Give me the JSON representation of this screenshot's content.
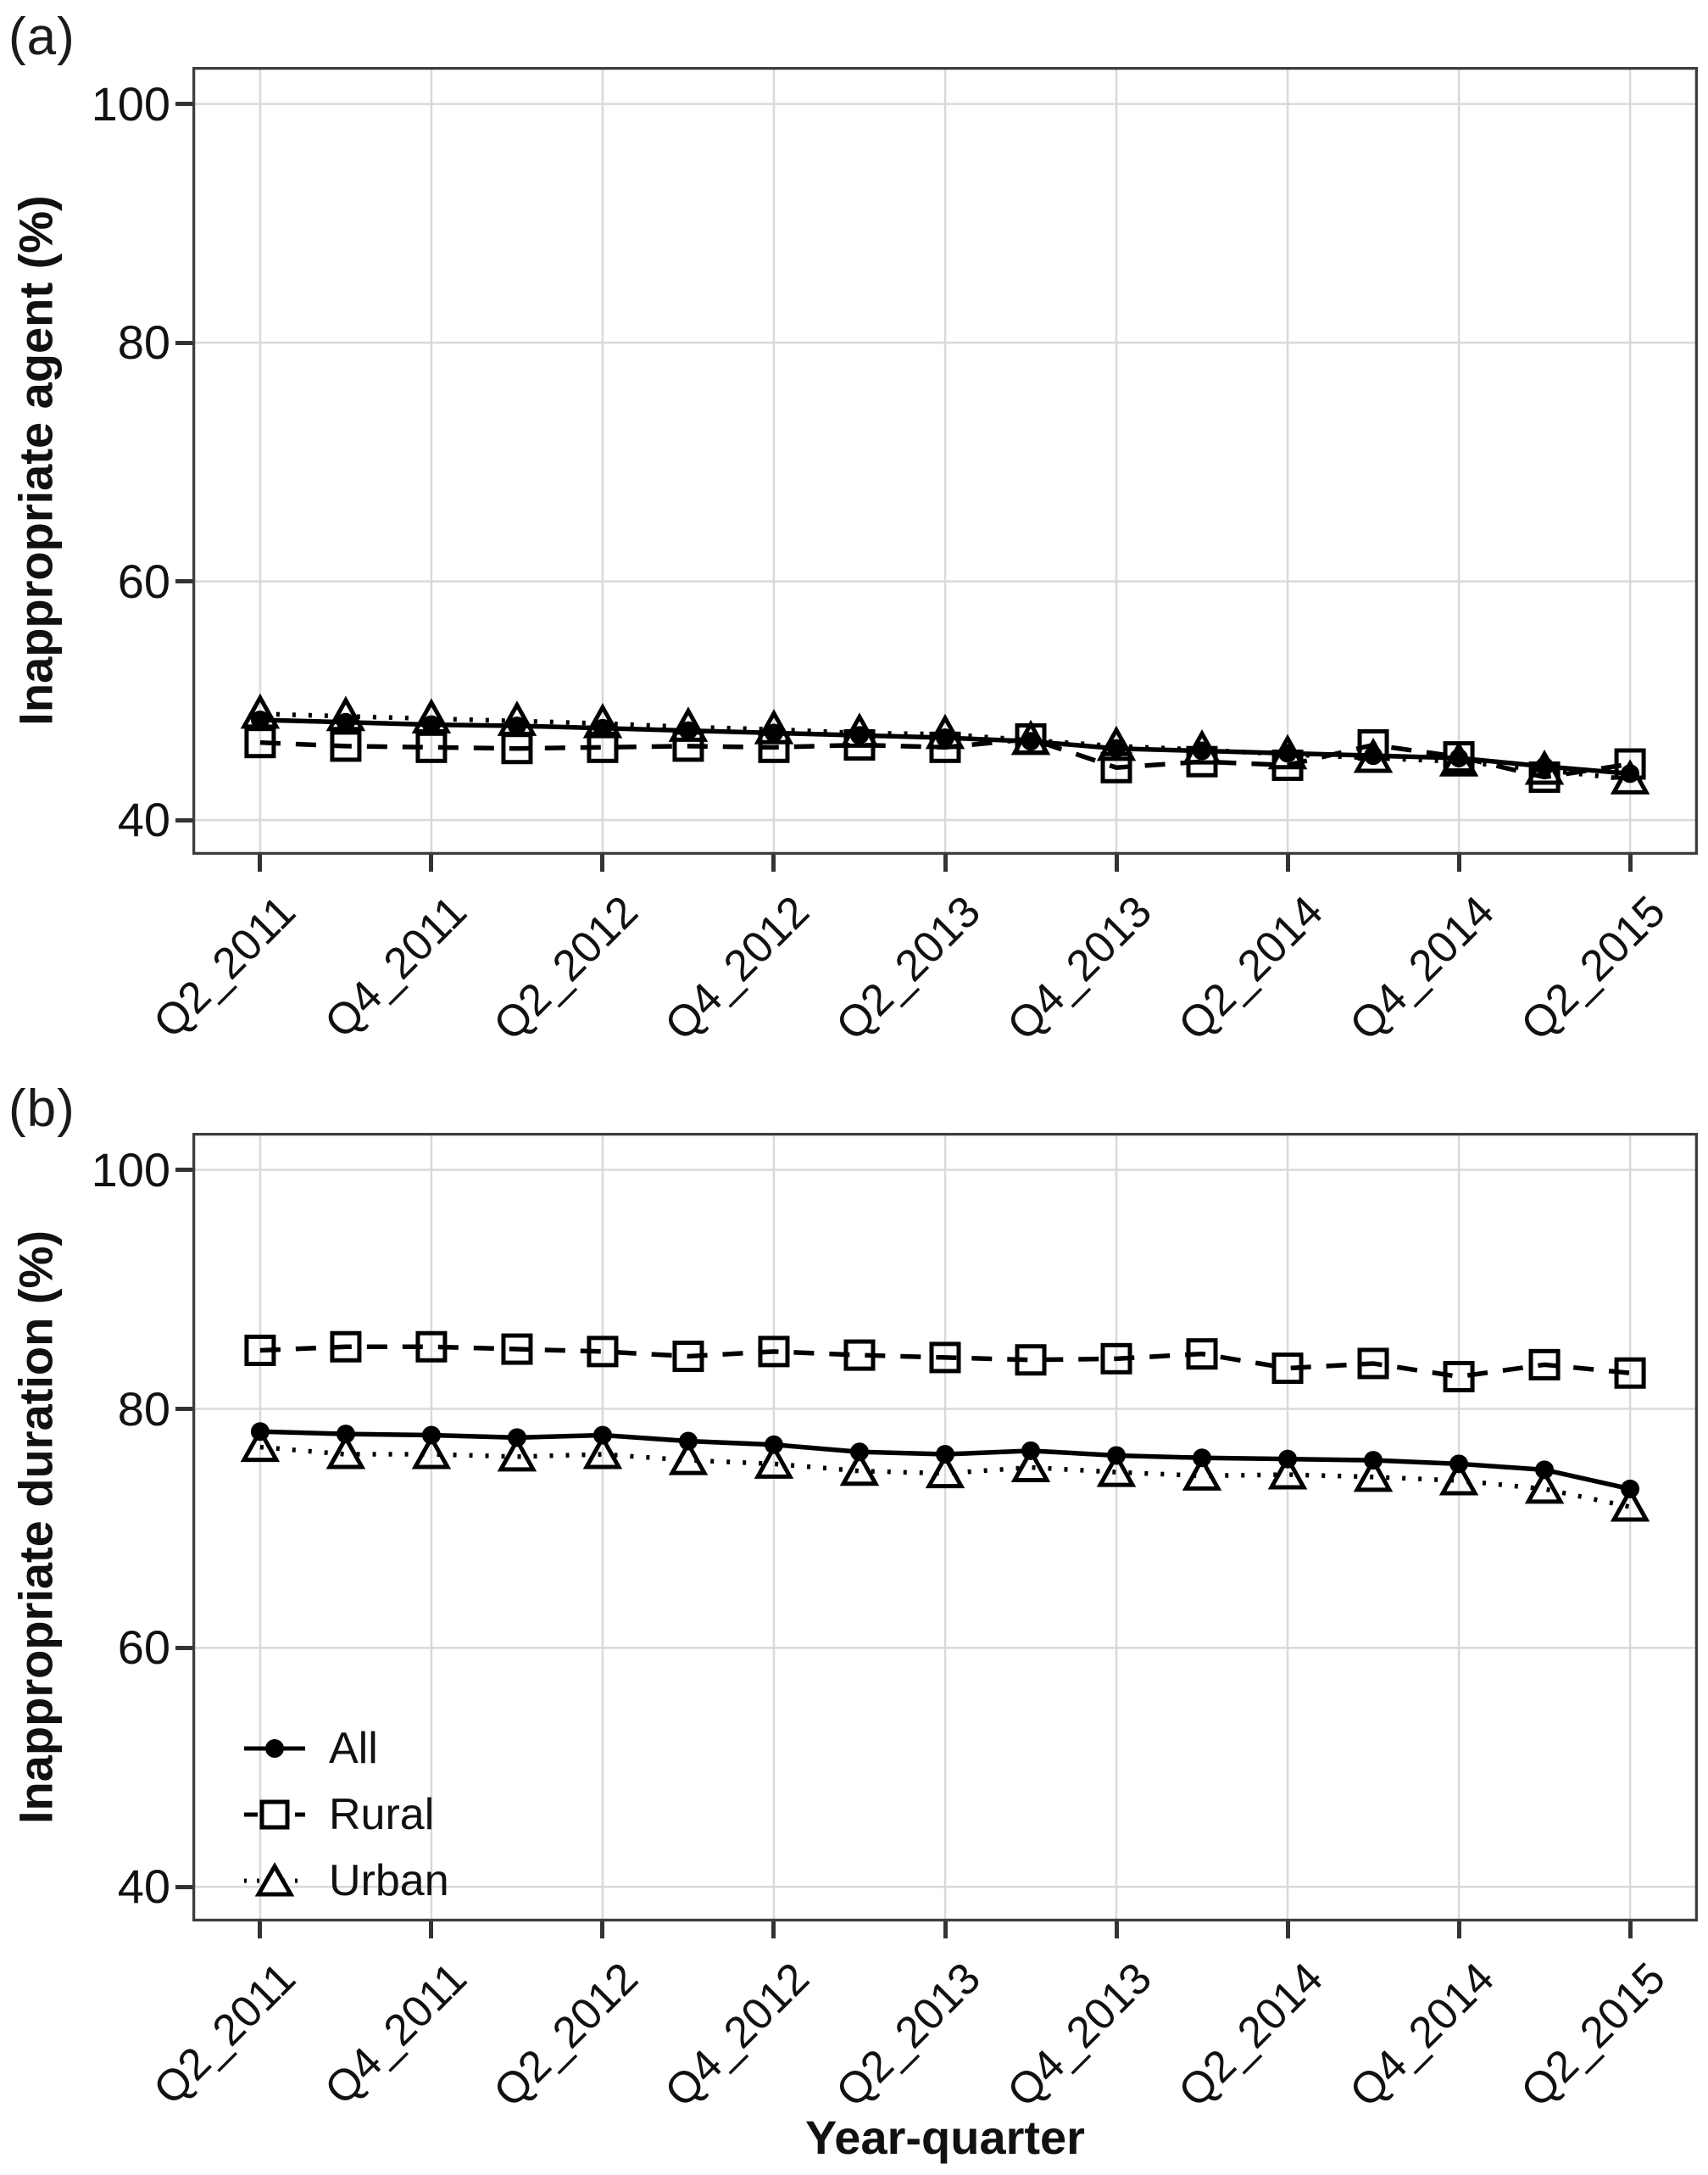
{
  "figure": {
    "kind": "two-panel scientific line chart",
    "background": "#ffffff"
  },
  "ui": {
    "panel_a_letter": "(a)",
    "panel_b_letter": "(b)"
  },
  "x_axis": {
    "title": "Year-quarter",
    "labeled_ticks": [
      "Q2_2011",
      "Q4_2011",
      "Q2_2012",
      "Q4_2012",
      "Q2_2013",
      "Q4_2013",
      "Q2_2014",
      "Q4_2014",
      "Q2_2015"
    ]
  },
  "y_axis": {
    "ticks": [
      100,
      80,
      60,
      40
    ]
  },
  "legend": {
    "position": "inside panel (b), bottom-left",
    "items": [
      {
        "label": "All",
        "marker": "filled-circle",
        "line": "solid"
      },
      {
        "label": "Rural",
        "marker": "open-square",
        "line": "dashed"
      },
      {
        "label": "Urban",
        "marker": "open-triangle",
        "line": "dotted"
      }
    ]
  },
  "colors": {
    "series": "#000000",
    "grid": "#d9d9d9",
    "border": "#3d3d3d",
    "text": "#111111"
  },
  "chart_data": [
    {
      "type": "line",
      "panel": "a",
      "title": "",
      "xlabel": "",
      "ylabel": "Inappropriate agent (%)",
      "x": [
        "Q2_2011",
        "Q3_2011",
        "Q4_2011",
        "Q1_2012",
        "Q2_2012",
        "Q3_2012",
        "Q4_2012",
        "Q1_2013",
        "Q2_2013",
        "Q3_2013",
        "Q4_2013",
        "Q1_2014",
        "Q2_2014",
        "Q3_2014",
        "Q4_2014",
        "Q1_2015",
        "Q2_2015"
      ],
      "x_tick_labels": [
        "Q2_2011",
        "Q4_2011",
        "Q2_2012",
        "Q4_2012",
        "Q2_2013",
        "Q4_2013",
        "Q2_2014",
        "Q4_2014",
        "Q2_2015"
      ],
      "yticks": [
        40,
        60,
        80,
        100
      ],
      "ylim": [
        37.1,
        103.1
      ],
      "grid": true,
      "legend_position": "none",
      "series": [
        {
          "name": "All",
          "marker": "filled-circle",
          "line": "solid",
          "values": [
            48.4,
            48.2,
            48.0,
            47.9,
            47.7,
            47.5,
            47.3,
            47.1,
            46.9,
            46.6,
            46.0,
            45.8,
            45.6,
            45.4,
            45.2,
            44.5,
            43.9
          ]
        },
        {
          "name": "Rural",
          "marker": "open-square",
          "line": "dashed",
          "values": [
            46.5,
            46.2,
            46.1,
            46.0,
            46.1,
            46.2,
            46.1,
            46.3,
            46.1,
            46.8,
            44.4,
            44.9,
            44.6,
            46.3,
            45.3,
            43.6,
            44.7
          ]
        },
        {
          "name": "Urban",
          "marker": "open-triangle",
          "line": "dotted",
          "values": [
            48.9,
            48.7,
            48.5,
            48.3,
            48.1,
            47.8,
            47.6,
            47.3,
            47.2,
            46.7,
            46.2,
            45.9,
            45.5,
            45.2,
            44.9,
            44.2,
            43.4
          ]
        }
      ]
    },
    {
      "type": "line",
      "panel": "b",
      "title": "",
      "xlabel": "Year-quarter",
      "ylabel": "Inappropriate duration (%)",
      "x": [
        "Q2_2011",
        "Q3_2011",
        "Q4_2011",
        "Q1_2012",
        "Q2_2012",
        "Q3_2012",
        "Q4_2012",
        "Q1_2013",
        "Q2_2013",
        "Q3_2013",
        "Q4_2013",
        "Q1_2014",
        "Q2_2014",
        "Q3_2014",
        "Q4_2014",
        "Q1_2015",
        "Q2_2015"
      ],
      "x_tick_labels": [
        "Q2_2011",
        "Q4_2011",
        "Q2_2012",
        "Q4_2012",
        "Q2_2013",
        "Q4_2013",
        "Q2_2014",
        "Q4_2014",
        "Q2_2015"
      ],
      "yticks": [
        40,
        60,
        80,
        100
      ],
      "ylim": [
        37.1,
        103.1
      ],
      "grid": true,
      "legend_position": "bottom-left-inside",
      "series": [
        {
          "name": "All",
          "marker": "filled-circle",
          "line": "solid",
          "values": [
            78.1,
            77.9,
            77.8,
            77.6,
            77.8,
            77.3,
            77.0,
            76.4,
            76.2,
            76.5,
            76.1,
            75.9,
            75.8,
            75.7,
            75.4,
            74.9,
            73.3
          ]
        },
        {
          "name": "Rural",
          "marker": "open-square",
          "line": "dashed",
          "values": [
            84.9,
            85.2,
            85.2,
            85.0,
            84.8,
            84.4,
            84.8,
            84.5,
            84.3,
            84.1,
            84.2,
            84.6,
            83.4,
            83.8,
            82.7,
            83.7,
            83.0
          ]
        },
        {
          "name": "Urban",
          "marker": "open-triangle",
          "line": "dotted",
          "values": [
            76.8,
            76.2,
            76.2,
            76.0,
            76.2,
            75.7,
            75.4,
            74.8,
            74.6,
            75.1,
            74.7,
            74.4,
            74.5,
            74.3,
            74.0,
            73.3,
            71.8
          ]
        }
      ]
    }
  ]
}
